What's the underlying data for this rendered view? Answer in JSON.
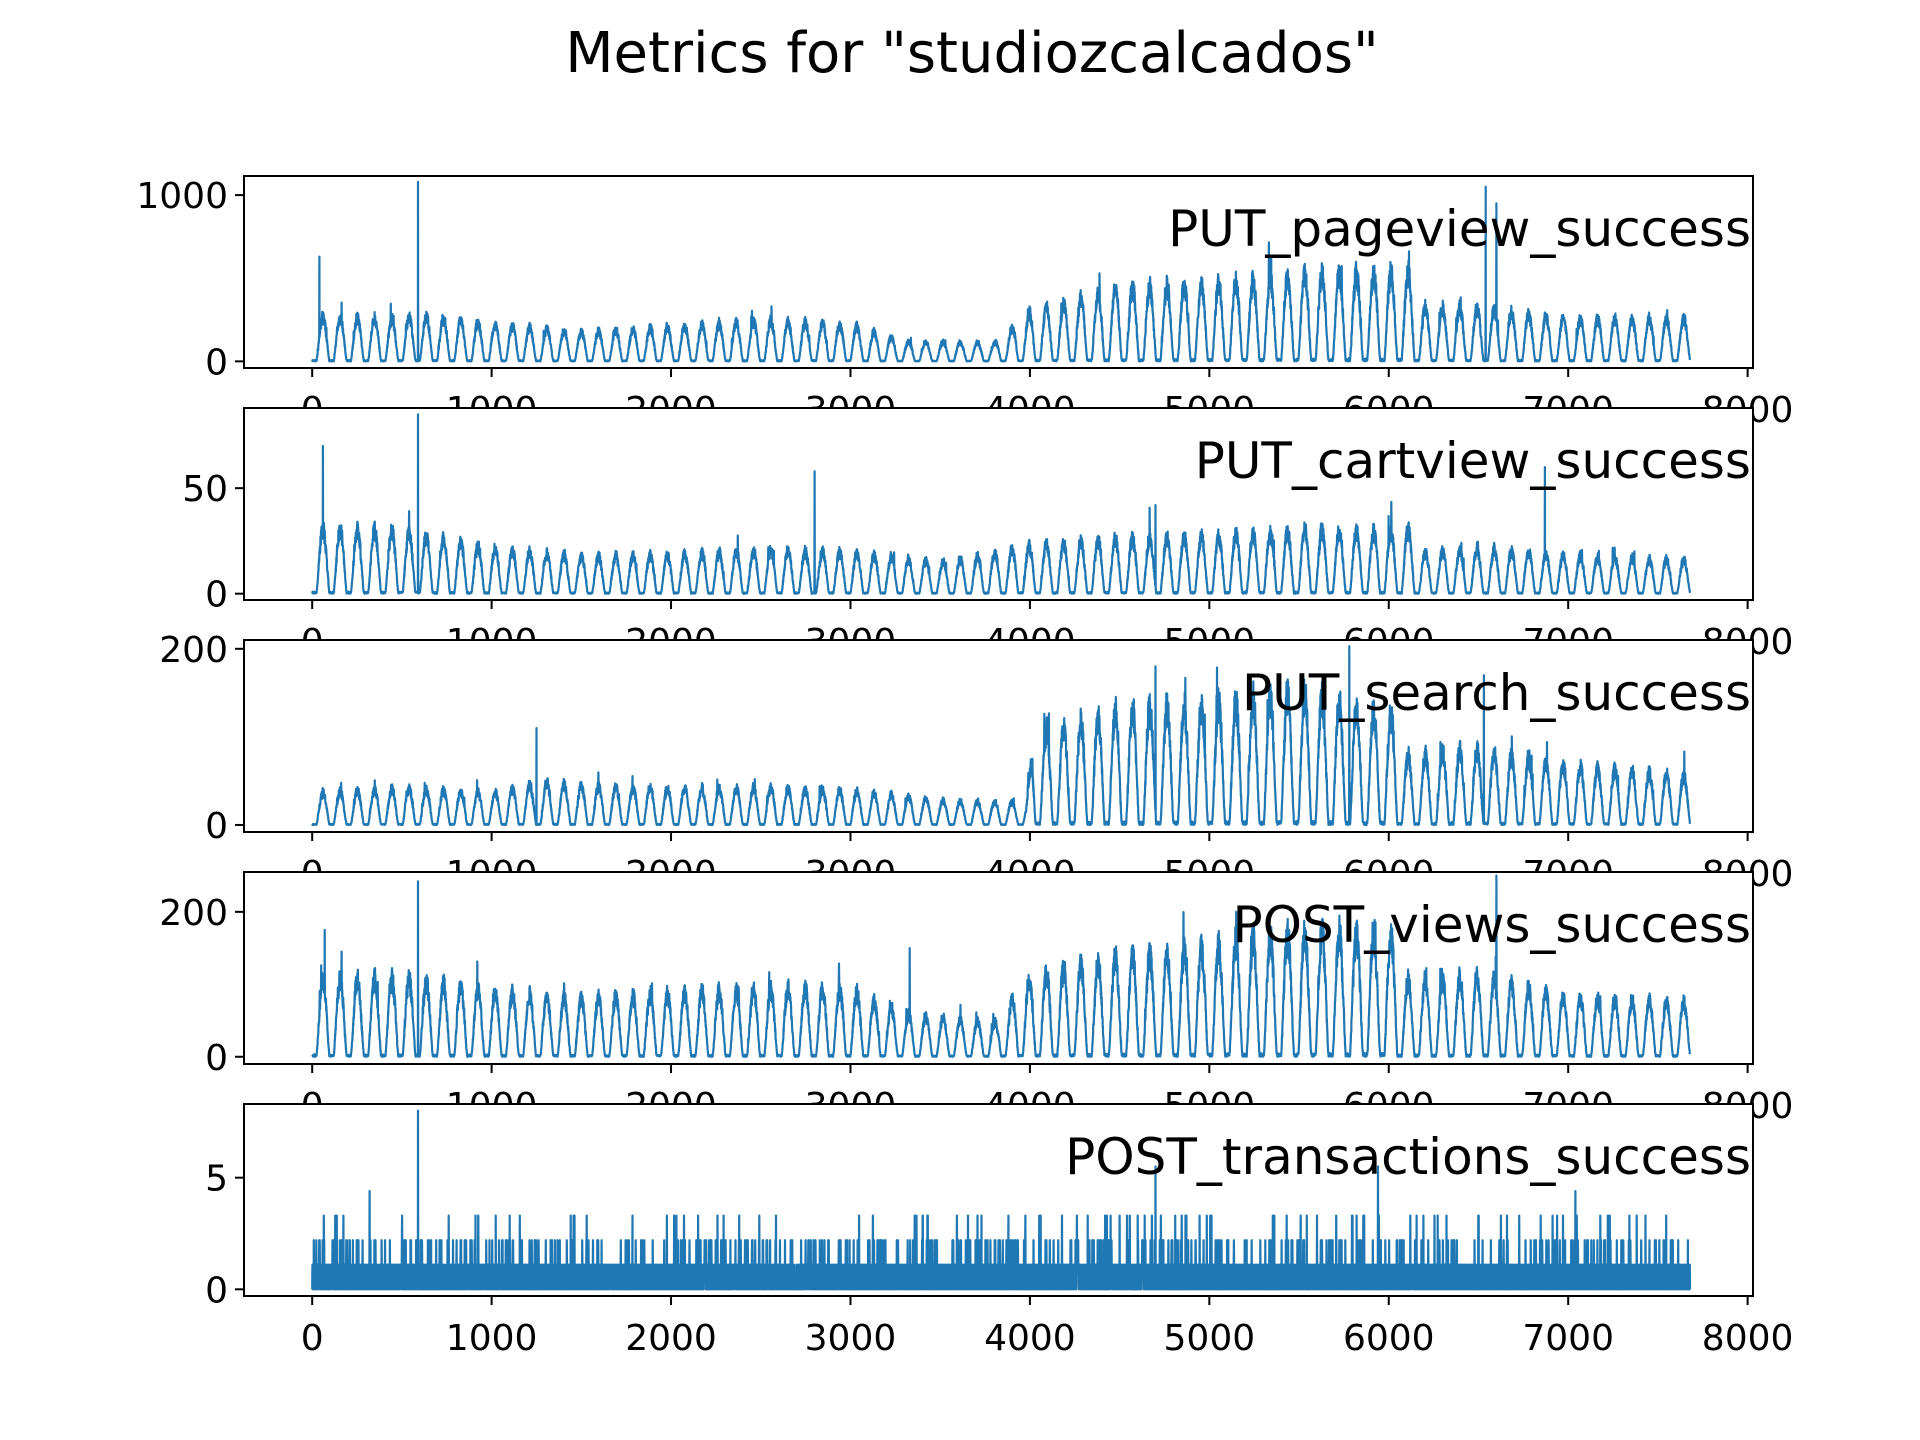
{
  "title": "Metrics for \"studiozcalcados\"",
  "series_color": "#1f77b4",
  "x_tick_labels": [
    "0",
    "1000",
    "2000",
    "3000",
    "4000",
    "5000",
    "6000",
    "7000",
    "8000"
  ],
  "chart_data": [
    {
      "type": "line",
      "label": "PUT_pageview_success",
      "xlim": [
        -380,
        8030
      ],
      "ylim": [
        -40,
        1115
      ],
      "x_ticks": [
        0,
        1000,
        2000,
        3000,
        4000,
        5000,
        6000,
        7000,
        8000
      ],
      "y_ticks": [
        0,
        1000
      ],
      "n_points": 7680,
      "period": 96,
      "baseline_envelope": [
        [
          0,
          330
        ],
        [
          500,
          310
        ],
        [
          600,
          330
        ],
        [
          1000,
          260
        ],
        [
          1500,
          200
        ],
        [
          2000,
          230
        ],
        [
          2500,
          260
        ],
        [
          3000,
          230
        ],
        [
          3300,
          120
        ],
        [
          3800,
          110
        ],
        [
          4000,
          290
        ],
        [
          4500,
          420
        ],
        [
          5000,
          430
        ],
        [
          5500,
          470
        ],
        [
          6000,
          470
        ],
        [
          6500,
          450
        ],
        [
          7000,
          340
        ],
        [
          7700,
          330
        ]
      ],
      "spikes": [
        [
          40,
          630
        ],
        [
          590,
          1080
        ],
        [
          6540,
          1050
        ],
        [
          6600,
          950
        ]
      ]
    },
    {
      "type": "line",
      "label": "PUT_cartview_success",
      "xlim": [
        -380,
        8030
      ],
      "ylim": [
        -3,
        88
      ],
      "x_ticks": [
        0,
        1000,
        2000,
        3000,
        4000,
        5000,
        6000,
        7000,
        8000
      ],
      "y_ticks": [
        0,
        50
      ],
      "n_points": 7680,
      "period": 96,
      "baseline_envelope": [
        [
          0,
          38
        ],
        [
          500,
          36
        ],
        [
          1000,
          25
        ],
        [
          1500,
          20
        ],
        [
          2000,
          20
        ],
        [
          2500,
          22
        ],
        [
          3000,
          20
        ],
        [
          3500,
          15
        ],
        [
          4000,
          22
        ],
        [
          4500,
          25
        ],
        [
          5000,
          25
        ],
        [
          5500,
          27
        ],
        [
          6000,
          26
        ],
        [
          6500,
          30
        ],
        [
          7000,
          24
        ],
        [
          7700,
          20
        ]
      ],
      "spikes": [
        [
          60,
          70
        ],
        [
          590,
          85
        ],
        [
          2800,
          58
        ],
        [
          4700,
          42
        ],
        [
          6870,
          60
        ]
      ]
    },
    {
      "type": "line",
      "label": "PUT_search_success",
      "xlim": [
        -380,
        8030
      ],
      "ylim": [
        -8,
        210
      ],
      "x_ticks": [
        0,
        1000,
        2000,
        3000,
        4000,
        5000,
        6000,
        7000,
        8000
      ],
      "y_ticks": [
        0,
        200
      ],
      "n_points": 7680,
      "period": 96,
      "baseline_envelope": [
        [
          0,
          45
        ],
        [
          500,
          50
        ],
        [
          1000,
          42
        ],
        [
          1300,
          55
        ],
        [
          1500,
          50
        ],
        [
          2000,
          45
        ],
        [
          2500,
          45
        ],
        [
          3000,
          40
        ],
        [
          3500,
          28
        ],
        [
          3980,
          25
        ],
        [
          4020,
          100
        ],
        [
          4500,
          125
        ],
        [
          5000,
          125
        ],
        [
          5500,
          135
        ],
        [
          6000,
          110
        ],
        [
          6500,
          120
        ],
        [
          7000,
          90
        ],
        [
          7700,
          70
        ]
      ],
      "spikes": [
        [
          1250,
          110
        ],
        [
          4700,
          180
        ],
        [
          5780,
          203
        ],
        [
          6530,
          170
        ]
      ]
    },
    {
      "type": "line",
      "label": "POST_views_success",
      "xlim": [
        -380,
        8030
      ],
      "ylim": [
        -10,
        255
      ],
      "x_ticks": [
        0,
        1000,
        2000,
        3000,
        4000,
        5000,
        6000,
        7000,
        8000
      ],
      "y_ticks": [
        0,
        200
      ],
      "n_points": 7680,
      "period": 96,
      "baseline_envelope": [
        [
          0,
          130
        ],
        [
          500,
          130
        ],
        [
          1000,
          105
        ],
        [
          1500,
          90
        ],
        [
          2000,
          95
        ],
        [
          2500,
          100
        ],
        [
          3000,
          95
        ],
        [
          3300,
          60
        ],
        [
          3800,
          45
        ],
        [
          4000,
          110
        ],
        [
          4500,
          130
        ],
        [
          5000,
          140
        ],
        [
          5500,
          155
        ],
        [
          6000,
          150
        ],
        [
          6500,
          155
        ],
        [
          7000,
          110
        ],
        [
          7700,
          95
        ]
      ],
      "spikes": [
        [
          70,
          175
        ],
        [
          590,
          242
        ],
        [
          3330,
          150
        ],
        [
          5150,
          200
        ],
        [
          6600,
          250
        ]
      ]
    },
    {
      "type": "line",
      "label": "POST_transactions_success",
      "xlim": [
        -380,
        8030
      ],
      "ylim": [
        -0.3,
        8.3
      ],
      "x_ticks": [
        0,
        1000,
        2000,
        3000,
        4000,
        5000,
        6000,
        7000,
        8000
      ],
      "y_ticks": [
        0,
        5
      ],
      "n_points": 7680,
      "period": 96,
      "discrete_levels": [
        0,
        1.1,
        2.2,
        3.3
      ],
      "spikes": [
        [
          320,
          4.4
        ],
        [
          590,
          8.0
        ],
        [
          4700,
          5.5
        ],
        [
          5940,
          5.5
        ],
        [
          7040,
          4.4
        ]
      ]
    }
  ]
}
